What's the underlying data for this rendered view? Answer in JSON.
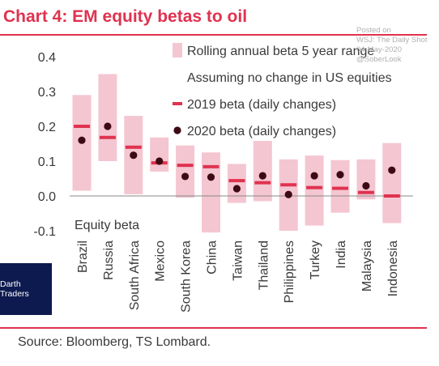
{
  "title": "Chart 4: EM equity betas to oil",
  "source": "Source: Bloomberg, TS Lombard.",
  "watermark": [
    "Posted on",
    "WSJ: The Daily Shot",
    "04-May-2020",
    "@SoberLook"
  ],
  "badge": "Darth Traders",
  "colors": {
    "accent": "#e0324f",
    "range": "#f4c6d1",
    "dot": "#3d0a14",
    "zero_line": "#888888"
  },
  "chart_data": {
    "type": "range-marker",
    "ylabel": "Equity beta",
    "ylim": [
      -0.12,
      0.42
    ],
    "yticks": [
      "0.4",
      "0.3",
      "0.2",
      "0.1",
      "0.0",
      "-0.1"
    ],
    "categories": [
      "Brazil",
      "Russia",
      "South Africa",
      "Mexico",
      "South Korea",
      "China",
      "Taiwan",
      "Thailand",
      "Philippines",
      "Turkey",
      "India",
      "Malaysia",
      "Indonesia"
    ],
    "legend": [
      {
        "label": "Rolling annual beta 5 year range",
        "marker": "range"
      },
      {
        "label": "Assuming no change in US equities",
        "marker": "none"
      },
      {
        "label": "2019 beta (daily changes)",
        "marker": "dash"
      },
      {
        "label": "2020 beta (daily changes)",
        "marker": "dot"
      }
    ],
    "series": [
      {
        "name": "Rolling annual beta 5 year range",
        "low": [
          0.015,
          0.1,
          0.005,
          0.07,
          -0.005,
          -0.105,
          -0.02,
          -0.015,
          -0.1,
          -0.085,
          -0.048,
          -0.01,
          -0.078
        ],
        "high": [
          0.29,
          0.35,
          0.23,
          0.168,
          0.145,
          0.125,
          0.092,
          0.158,
          0.105,
          0.116,
          0.103,
          0.105,
          0.152
        ]
      },
      {
        "name": "2019 beta (daily changes)",
        "values": [
          0.2,
          0.168,
          0.14,
          0.095,
          0.088,
          0.084,
          0.044,
          0.038,
          0.032,
          0.024,
          0.022,
          0.01,
          0.0
        ]
      },
      {
        "name": "2020 beta (daily changes)",
        "values": [
          0.16,
          0.2,
          0.117,
          0.1,
          0.056,
          0.054,
          0.021,
          0.058,
          0.004,
          0.058,
          0.061,
          0.029,
          0.074
        ]
      }
    ]
  }
}
